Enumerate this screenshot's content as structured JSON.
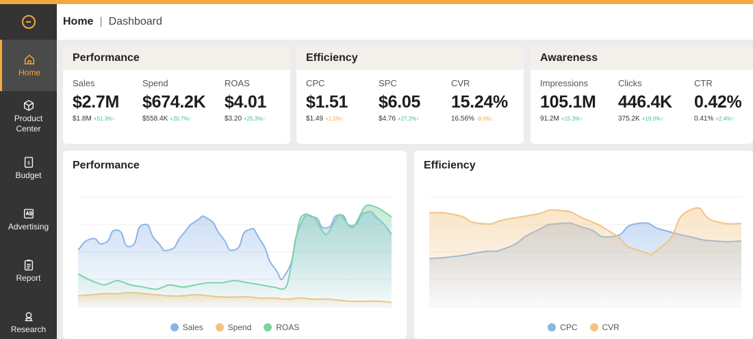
{
  "colors": {
    "accent": "#f2a93b",
    "sidebar": "#343434",
    "blue": "#8db4e6",
    "orange": "#f2c382",
    "green": "#7fd3a6",
    "up": "#3fbf7f"
  },
  "sidebar": {
    "items": [
      {
        "label": "Home",
        "icon": "home-icon",
        "active": true
      },
      {
        "label": "Product Center",
        "icon": "box-icon",
        "active": false
      },
      {
        "label": "Budget",
        "icon": "budget-icon",
        "active": false
      },
      {
        "label": "Advertising",
        "icon": "ad-icon",
        "active": false
      },
      {
        "label": "Report",
        "icon": "report-icon",
        "active": false
      },
      {
        "label": "Research",
        "icon": "research-icon",
        "active": false
      }
    ]
  },
  "header": {
    "home": "Home",
    "separator": "|",
    "current": "Dashboard"
  },
  "kpi_cards": [
    {
      "title": "Performance",
      "metrics": [
        {
          "label": "Sales",
          "value": "$2.7M",
          "prev": "$1.8M",
          "change": "+51.3%",
          "dir": "up"
        },
        {
          "label": "Spend",
          "value": "$674.2K",
          "prev": "$558.4K",
          "change": "+20.7%",
          "dir": "up"
        },
        {
          "label": "ROAS",
          "value": "$4.01",
          "prev": "$3.20",
          "change": "+25.3%",
          "dir": "up"
        }
      ]
    },
    {
      "title": "Efficiency",
      "metrics": [
        {
          "label": "CPC",
          "value": "$1.51",
          "prev": "$1.49",
          "change": "+1.5%",
          "dir": "down"
        },
        {
          "label": "SPC",
          "value": "$6.05",
          "prev": "$4.76",
          "change": "+27.2%",
          "dir": "up"
        },
        {
          "label": "CVR",
          "value": "15.24%",
          "prev": "16.56%",
          "change": "-8.0%",
          "dir": "down"
        }
      ]
    },
    {
      "title": "Awareness",
      "metrics": [
        {
          "label": "Impressions",
          "value": "105.1M",
          "prev": "91.2M",
          "change": "+15.3%",
          "dir": "up"
        },
        {
          "label": "Clicks",
          "value": "446.4K",
          "prev": "375.2K",
          "change": "+19.0%",
          "dir": "up"
        },
        {
          "label": "CTR",
          "value": "0.42%",
          "prev": "0.41%",
          "change": "+2.4%",
          "dir": "up"
        }
      ]
    }
  ],
  "chart_data": [
    {
      "type": "area",
      "title": "Performance",
      "x": [
        0,
        1,
        2,
        3,
        4,
        5,
        6,
        7,
        8,
        9,
        10,
        11,
        12,
        13,
        14,
        15,
        16,
        17,
        18,
        19,
        20,
        21,
        22,
        23,
        24
      ],
      "ylim": [
        0,
        100
      ],
      "grid": true,
      "legend": "bottom",
      "series": [
        {
          "name": "Sales",
          "values": [
            52,
            62,
            58,
            70,
            55,
            75,
            60,
            52,
            66,
            78,
            80,
            64,
            52,
            70,
            60,
            36,
            32,
            74,
            82,
            72,
            84,
            74,
            86,
            80,
            66
          ]
        },
        {
          "name": "Spend",
          "values": [
            10,
            11,
            12,
            12,
            13,
            12,
            11,
            10,
            10,
            11,
            10,
            9,
            9,
            9,
            8,
            8,
            7,
            8,
            7,
            7,
            6,
            5,
            5,
            5,
            4
          ]
        },
        {
          "name": "ROAS",
          "values": [
            30,
            24,
            20,
            24,
            20,
            18,
            16,
            20,
            18,
            20,
            22,
            22,
            24,
            22,
            20,
            18,
            20,
            80,
            82,
            66,
            84,
            72,
            92,
            90,
            82
          ]
        }
      ]
    },
    {
      "type": "area",
      "title": "Efficiency",
      "x": [
        0,
        1,
        2,
        3,
        4,
        5,
        6,
        7,
        8,
        9,
        10,
        11,
        12
      ],
      "ylim": [
        0,
        100
      ],
      "grid": true,
      "legend": "bottom",
      "series": [
        {
          "name": "CPC",
          "values": [
            44,
            46,
            50,
            54,
            68,
            76,
            72,
            64,
            76,
            70,
            64,
            60,
            60
          ]
        },
        {
          "name": "CVR",
          "values": [
            86,
            84,
            76,
            80,
            84,
            88,
            80,
            68,
            52,
            56,
            88,
            78,
            76
          ]
        }
      ]
    }
  ]
}
